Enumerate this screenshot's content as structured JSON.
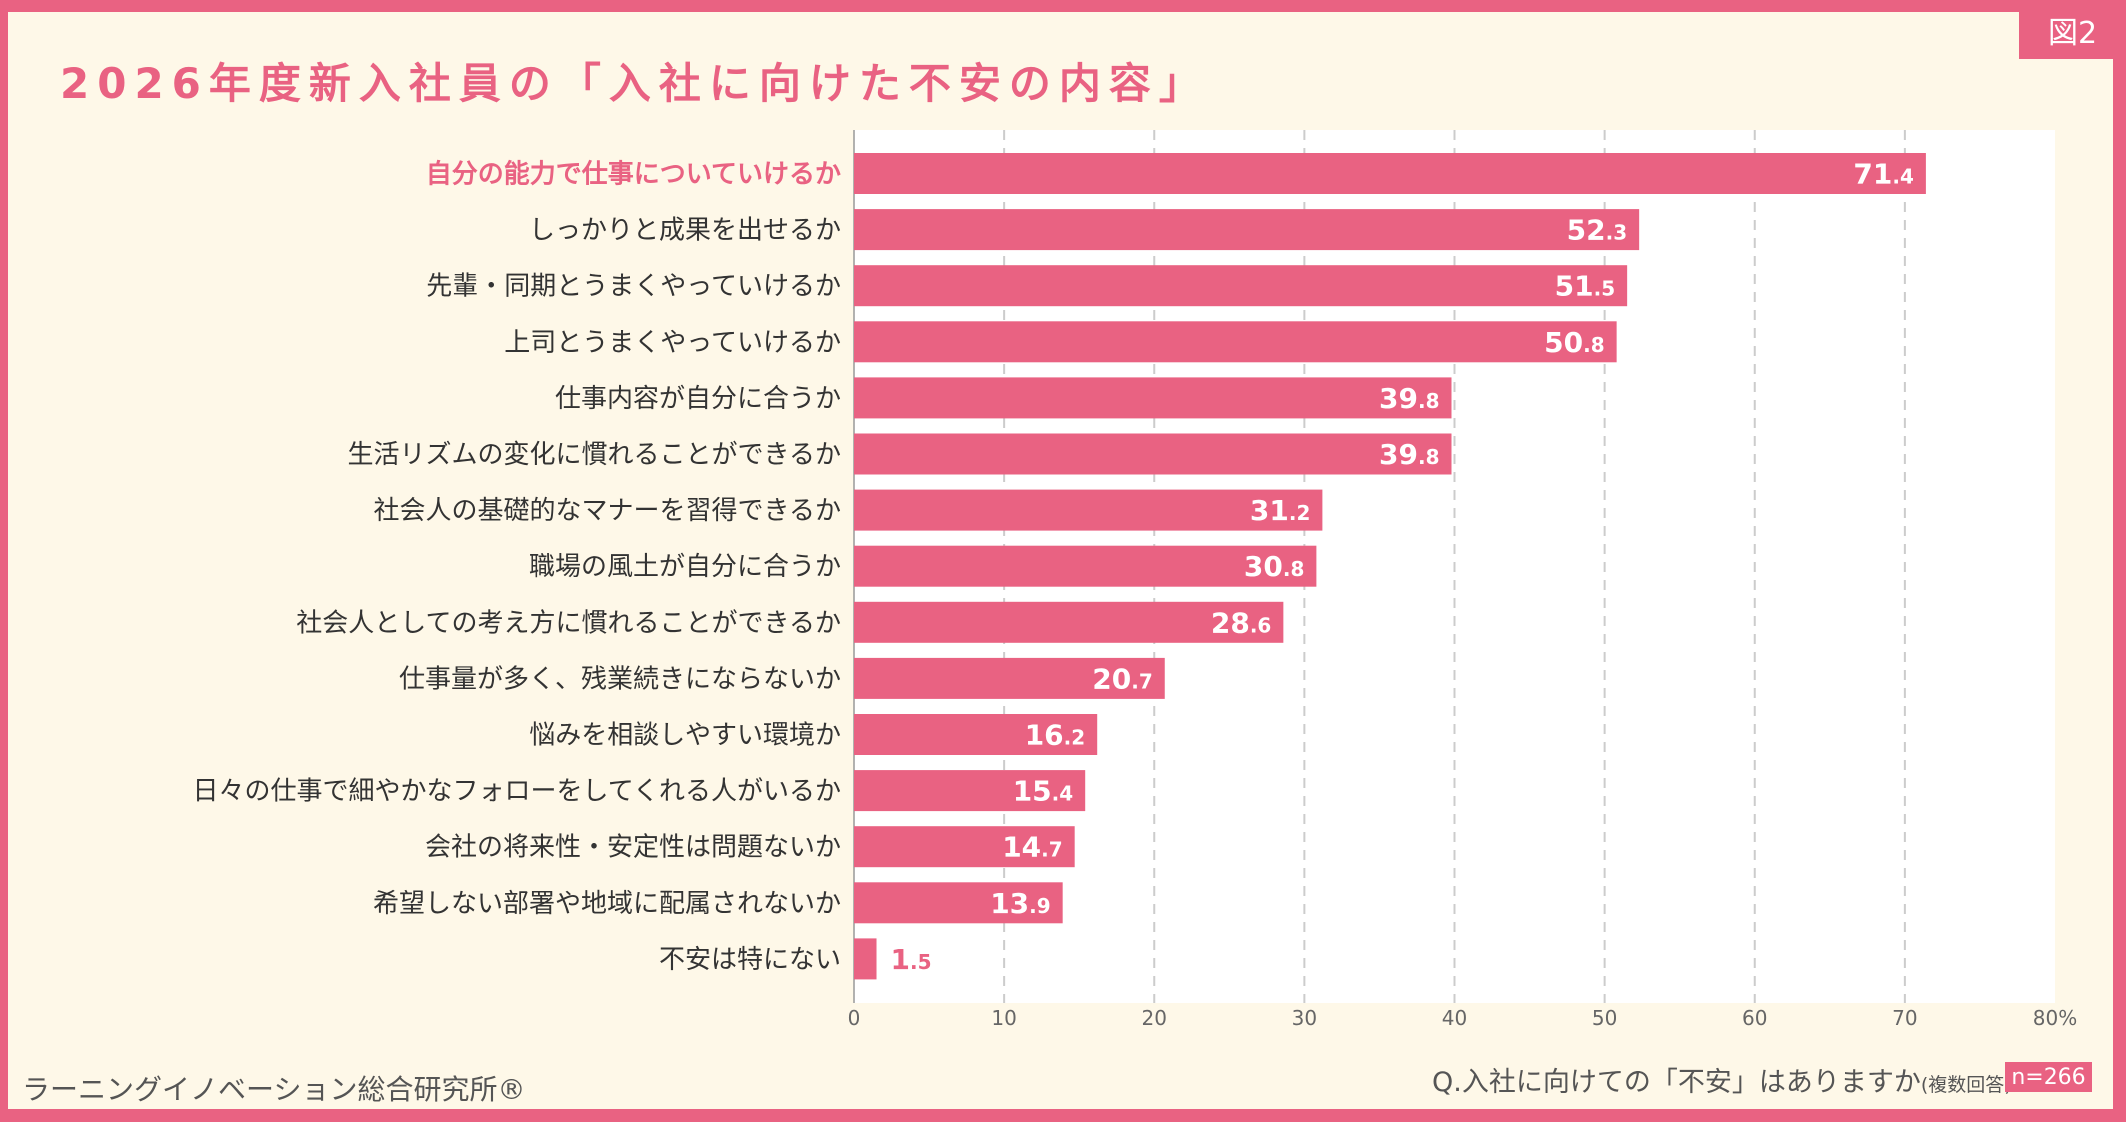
{
  "badge": "図2",
  "title": "2026年度新入社員の「入社に向けた不安の内容」",
  "footer": {
    "org": "ラーニングイノベーション総合研究所®",
    "question": "Q.入社に向けての「不安」はありますか",
    "note": "(複数回答)",
    "n": "n=266"
  },
  "colors": {
    "bar": "#e96282",
    "highlight_label": "#e96282",
    "background": "#fef8e8",
    "text": "#333333"
  },
  "chart_data": {
    "type": "bar",
    "orientation": "horizontal",
    "categories": [
      "自分の能力で仕事についていけるか",
      "しっかりと成果を出せるか",
      "先輩・同期とうまくやっていけるか",
      "上司とうまくやっていけるか",
      "仕事内容が自分に合うか",
      "生活リズムの変化に慣れることができるか",
      "社会人の基礎的なマナーを習得できるか",
      "職場の風土が自分に合うか",
      "社会人としての考え方に慣れることができるか",
      "仕事量が多く、残業続きにならないか",
      "悩みを相談しやすい環境か",
      "日々の仕事で細やかなフォローをしてくれる人がいるか",
      "会社の将来性・安定性は問題ないか",
      "希望しない部署や地域に配属されないか",
      "不安は特にない"
    ],
    "values": [
      71.4,
      52.3,
      51.5,
      50.8,
      39.8,
      39.8,
      31.2,
      30.8,
      28.6,
      20.7,
      16.2,
      15.4,
      14.7,
      13.9,
      1.5
    ],
    "xlim": [
      0,
      80
    ],
    "xticks": [
      "0",
      "10",
      "20",
      "30",
      "40",
      "50",
      "60",
      "70",
      "80%"
    ],
    "grid": true,
    "highlighted_category_index": 0
  }
}
